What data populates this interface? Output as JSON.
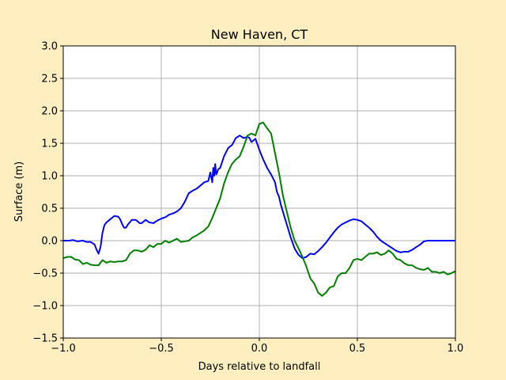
{
  "colors": {
    "figure_background": "#ffeebf",
    "axes_background": "#ffffff",
    "grid": "#b0b0b0",
    "series_blue": "#0000ff",
    "series_green": "#008000"
  },
  "chart_data": {
    "type": "line",
    "title": "New Haven, CT",
    "xlabel": "Days relative to landfall",
    "ylabel": "Surface (m)",
    "xlim": [
      -1.0,
      1.0
    ],
    "ylim": [
      -1.5,
      3.0
    ],
    "grid": true,
    "xticks": [
      -1.0,
      -0.5,
      0.0,
      0.5,
      1.0
    ],
    "xtick_labels": [
      "−1.0",
      "−0.5",
      "0.0",
      "0.5",
      "1.0"
    ],
    "yticks": [
      -1.5,
      -1.0,
      -0.5,
      0.0,
      0.5,
      1.0,
      1.5,
      2.0,
      2.5,
      3.0
    ],
    "ytick_labels": [
      "−1.5",
      "−1.0",
      "−0.5",
      "0.0",
      "0.5",
      "1.0",
      "1.5",
      "2.0",
      "2.5",
      "3.0"
    ],
    "series": [
      {
        "color": "#0000ff",
        "x": [
          -1.0,
          -0.97,
          -0.95,
          -0.93,
          -0.9,
          -0.88,
          -0.86,
          -0.84,
          -0.83,
          -0.82,
          -0.81,
          -0.8,
          -0.79,
          -0.78,
          -0.76,
          -0.74,
          -0.72,
          -0.71,
          -0.7,
          -0.69,
          -0.68,
          -0.67,
          -0.65,
          -0.63,
          -0.61,
          -0.6,
          -0.58,
          -0.56,
          -0.54,
          -0.52,
          -0.5,
          -0.48,
          -0.46,
          -0.44,
          -0.42,
          -0.4,
          -0.38,
          -0.36,
          -0.34,
          -0.32,
          -0.3,
          -0.28,
          -0.26,
          -0.25,
          -0.24,
          -0.235,
          -0.23,
          -0.225,
          -0.22,
          -0.215,
          -0.21,
          -0.2,
          -0.18,
          -0.16,
          -0.15,
          -0.14,
          -0.12,
          -0.1,
          -0.08,
          -0.06,
          -0.05,
          -0.04,
          -0.02,
          0.0,
          0.02,
          0.04,
          0.06,
          0.08,
          0.09,
          0.1,
          0.11,
          0.12,
          0.13,
          0.14,
          0.15,
          0.16,
          0.18,
          0.2,
          0.22,
          0.24,
          0.26,
          0.28,
          0.3,
          0.32,
          0.34,
          0.36,
          0.38,
          0.4,
          0.42,
          0.44,
          0.46,
          0.48,
          0.5,
          0.52,
          0.54,
          0.56,
          0.58,
          0.6,
          0.62,
          0.64,
          0.66,
          0.68,
          0.7,
          0.72,
          0.74,
          0.76,
          0.78,
          0.8,
          0.82,
          0.84,
          0.86,
          0.88,
          0.9,
          0.92,
          0.94,
          0.96,
          0.98,
          1.0
        ],
        "y": [
          0.0,
          0.0,
          0.01,
          -0.01,
          0.0,
          -0.02,
          -0.02,
          -0.06,
          -0.14,
          -0.2,
          -0.1,
          0.12,
          0.24,
          0.28,
          0.33,
          0.38,
          0.37,
          0.33,
          0.26,
          0.2,
          0.2,
          0.25,
          0.32,
          0.32,
          0.27,
          0.27,
          0.32,
          0.28,
          0.27,
          0.31,
          0.34,
          0.36,
          0.4,
          0.42,
          0.45,
          0.5,
          0.6,
          0.73,
          0.77,
          0.8,
          0.85,
          0.9,
          0.92,
          1.05,
          0.9,
          1.12,
          1.0,
          1.18,
          1.02,
          1.05,
          1.1,
          1.12,
          1.3,
          1.42,
          1.45,
          1.47,
          1.58,
          1.62,
          1.58,
          1.6,
          1.58,
          1.52,
          1.57,
          1.4,
          1.25,
          1.12,
          1.02,
          0.9,
          0.75,
          0.68,
          0.55,
          0.45,
          0.35,
          0.25,
          0.15,
          0.05,
          -0.12,
          -0.22,
          -0.27,
          -0.25,
          -0.2,
          -0.21,
          -0.16,
          -0.1,
          -0.03,
          0.05,
          0.13,
          0.2,
          0.25,
          0.28,
          0.31,
          0.33,
          0.32,
          0.3,
          0.25,
          0.2,
          0.14,
          0.06,
          0.0,
          -0.04,
          -0.08,
          -0.12,
          -0.16,
          -0.18,
          -0.17,
          -0.17,
          -0.14,
          -0.1,
          -0.06,
          -0.01,
          0.0,
          0.0,
          0.0,
          0.0,
          0.0,
          0.0,
          0.0,
          0.0
        ]
      },
      {
        "color": "#008000",
        "x": [
          -1.0,
          -0.98,
          -0.96,
          -0.94,
          -0.92,
          -0.9,
          -0.88,
          -0.86,
          -0.84,
          -0.82,
          -0.8,
          -0.78,
          -0.76,
          -0.74,
          -0.72,
          -0.7,
          -0.68,
          -0.66,
          -0.64,
          -0.62,
          -0.6,
          -0.58,
          -0.56,
          -0.54,
          -0.52,
          -0.5,
          -0.48,
          -0.46,
          -0.44,
          -0.42,
          -0.4,
          -0.38,
          -0.36,
          -0.34,
          -0.32,
          -0.3,
          -0.28,
          -0.26,
          -0.24,
          -0.22,
          -0.2,
          -0.18,
          -0.16,
          -0.14,
          -0.12,
          -0.1,
          -0.08,
          -0.06,
          -0.04,
          -0.02,
          0.0,
          0.02,
          0.04,
          0.06,
          0.08,
          0.1,
          0.12,
          0.14,
          0.16,
          0.18,
          0.2,
          0.22,
          0.24,
          0.26,
          0.28,
          0.3,
          0.32,
          0.34,
          0.36,
          0.38,
          0.4,
          0.42,
          0.44,
          0.46,
          0.48,
          0.5,
          0.52,
          0.54,
          0.56,
          0.58,
          0.6,
          0.62,
          0.64,
          0.66,
          0.68,
          0.7,
          0.72,
          0.74,
          0.76,
          0.78,
          0.8,
          0.82,
          0.84,
          0.86,
          0.88,
          0.9,
          0.92,
          0.94,
          0.96,
          0.98,
          1.0
        ],
        "y": [
          -0.27,
          -0.25,
          -0.25,
          -0.29,
          -0.3,
          -0.36,
          -0.34,
          -0.37,
          -0.38,
          -0.38,
          -0.3,
          -0.34,
          -0.32,
          -0.33,
          -0.32,
          -0.32,
          -0.3,
          -0.2,
          -0.15,
          -0.15,
          -0.17,
          -0.14,
          -0.07,
          -0.1,
          -0.05,
          -0.05,
          0.0,
          -0.03,
          0.0,
          0.03,
          -0.02,
          -0.01,
          0.0,
          0.05,
          0.08,
          0.12,
          0.16,
          0.22,
          0.35,
          0.5,
          0.65,
          0.88,
          1.05,
          1.18,
          1.25,
          1.3,
          1.45,
          1.62,
          1.65,
          1.62,
          1.8,
          1.82,
          1.73,
          1.65,
          1.35,
          1.05,
          0.7,
          0.45,
          0.2,
          0.0,
          -0.12,
          -0.25,
          -0.4,
          -0.58,
          -0.66,
          -0.8,
          -0.85,
          -0.8,
          -0.72,
          -0.7,
          -0.55,
          -0.5,
          -0.5,
          -0.42,
          -0.3,
          -0.28,
          -0.3,
          -0.25,
          -0.2,
          -0.2,
          -0.18,
          -0.22,
          -0.2,
          -0.15,
          -0.2,
          -0.28,
          -0.3,
          -0.35,
          -0.38,
          -0.38,
          -0.42,
          -0.44,
          -0.45,
          -0.42,
          -0.48,
          -0.48,
          -0.5,
          -0.48,
          -0.52,
          -0.5,
          -0.47
        ]
      }
    ]
  }
}
